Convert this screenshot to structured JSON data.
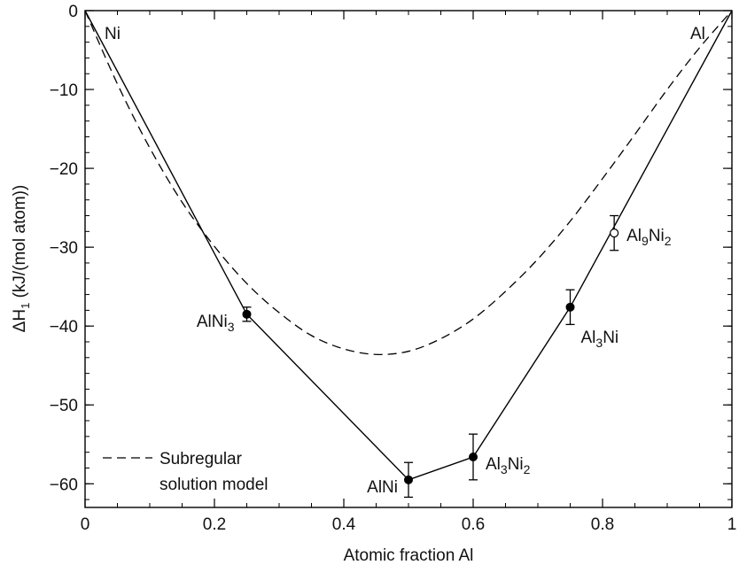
{
  "chart_data": {
    "type": "scatter",
    "title": "",
    "xlabel": "Atomic fraction Al",
    "ylabel": {
      "prefix": "ΔH",
      "sub": "1",
      "suffix": " (kJ/(mol atom))"
    },
    "xlim": [
      0,
      1
    ],
    "ylim": [
      -63,
      0
    ],
    "x_ticks": [
      0,
      0.2,
      0.4,
      0.6,
      0.8,
      1
    ],
    "x_tick_labels": [
      "0",
      "0.2",
      "0.4",
      "0.6",
      "0.8",
      "1"
    ],
    "x_minor_step": 0.05,
    "y_ticks": [
      0,
      -10,
      -20,
      -30,
      -40,
      -50,
      -60
    ],
    "y_tick_labels": [
      "0",
      "−10",
      "−20",
      "−30",
      "−40",
      "−50",
      "−60"
    ],
    "y_minor_step": 2,
    "grid": false,
    "legend": {
      "position": "bottom-left",
      "entry_lines": [
        "Subregular",
        "solution model"
      ],
      "style": "dashed"
    },
    "end_labels": {
      "left": "Ni",
      "right": "Al"
    },
    "series": [
      {
        "style": "solid-line-with-markers",
        "points": [
          {
            "x": 0,
            "y": 0,
            "marker": "none"
          },
          {
            "x": 0.25,
            "y": -38.5,
            "err": 0.9,
            "marker": "filled",
            "label": [
              {
                "t": "AlNi"
              },
              {
                "t": "3",
                "sub": true
              }
            ]
          },
          {
            "x": 0.5,
            "y": -59.5,
            "err": 2.2,
            "marker": "filled",
            "label": [
              {
                "t": "AlNi"
              }
            ]
          },
          {
            "x": 0.6,
            "y": -56.6,
            "err": 2.9,
            "marker": "filled",
            "label": [
              {
                "t": "Al"
              },
              {
                "t": "3",
                "sub": true
              },
              {
                "t": "Ni"
              },
              {
                "t": "2",
                "sub": true
              }
            ]
          },
          {
            "x": 0.75,
            "y": -37.6,
            "err": 2.2,
            "marker": "filled",
            "label": [
              {
                "t": "Al"
              },
              {
                "t": "3",
                "sub": true
              },
              {
                "t": "Ni"
              }
            ]
          },
          {
            "x": 1,
            "y": 0,
            "marker": "none"
          }
        ]
      },
      {
        "style": "isolated-point",
        "points": [
          {
            "x": 0.818,
            "y": -28.2,
            "err": 2.2,
            "marker": "open",
            "label": [
              {
                "t": "Al"
              },
              {
                "t": "9",
                "sub": true
              },
              {
                "t": "Ni"
              },
              {
                "t": "2",
                "sub": true
              }
            ]
          }
        ]
      },
      {
        "name": "Subregular solution model",
        "style": "dashed-curve",
        "x": [
          0,
          0.05,
          0.1,
          0.15,
          0.2,
          0.25,
          0.3,
          0.35,
          0.4,
          0.45,
          0.5,
          0.55,
          0.6,
          0.65,
          0.7,
          0.75,
          0.8,
          0.85,
          0.9,
          0.95,
          1
        ],
        "y": [
          0,
          -9.3,
          -17.4,
          -24.3,
          -29.9,
          -34.6,
          -38.3,
          -41.2,
          -42.9,
          -43.6,
          -43.2,
          -41.6,
          -39.1,
          -35.6,
          -31.5,
          -26.7,
          -21.3,
          -15.7,
          -10,
          -4.7,
          0
        ]
      }
    ]
  }
}
